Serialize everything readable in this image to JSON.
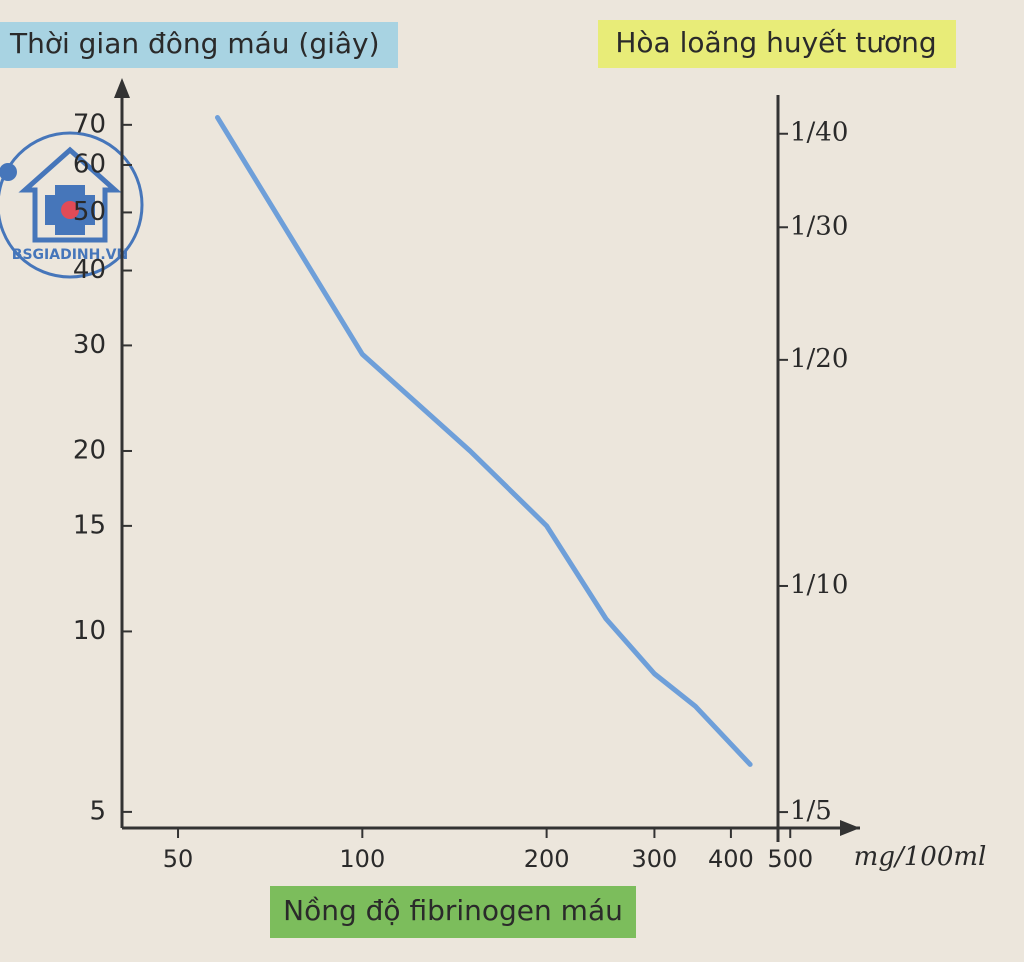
{
  "chart_data": {
    "type": "line",
    "title": "Thời gian đông máu (giây)",
    "y2_title": "Hòa loãng huyết tương",
    "x_title": "Nồng độ fibrinogen máu",
    "x_unit": "mg/100ml",
    "watermark": "BSGIADINH.VN",
    "x": [
      58,
      79,
      100,
      150,
      200,
      250,
      300,
      350,
      430
    ],
    "series": [
      {
        "name": "Thời gian đông máu",
        "color": "#6e9fd9",
        "values": [
          72,
          43,
          29,
          20,
          15,
          10.5,
          8.5,
          7.5,
          6
        ]
      }
    ],
    "x_scale": "log",
    "y_scale": "log",
    "xlim": [
      40.5,
      650
    ],
    "xticks": [
      50,
      100,
      200,
      300,
      400,
      500
    ],
    "ylim": [
      4.7,
      78.5
    ],
    "yticks": [
      5,
      10,
      15,
      20,
      30,
      40,
      50,
      60,
      70
    ],
    "y2lim": [
      0.21,
      0.0222
    ],
    "y2ticks": [
      {
        "value": 0.2,
        "label": "1/5"
      },
      {
        "value": 0.1,
        "label": "1/10"
      },
      {
        "value": 0.05,
        "label": "1/20"
      },
      {
        "value": 0.0333,
        "label": "1/30"
      },
      {
        "value": 0.025,
        "label": "1/40"
      }
    ],
    "grid": false
  }
}
